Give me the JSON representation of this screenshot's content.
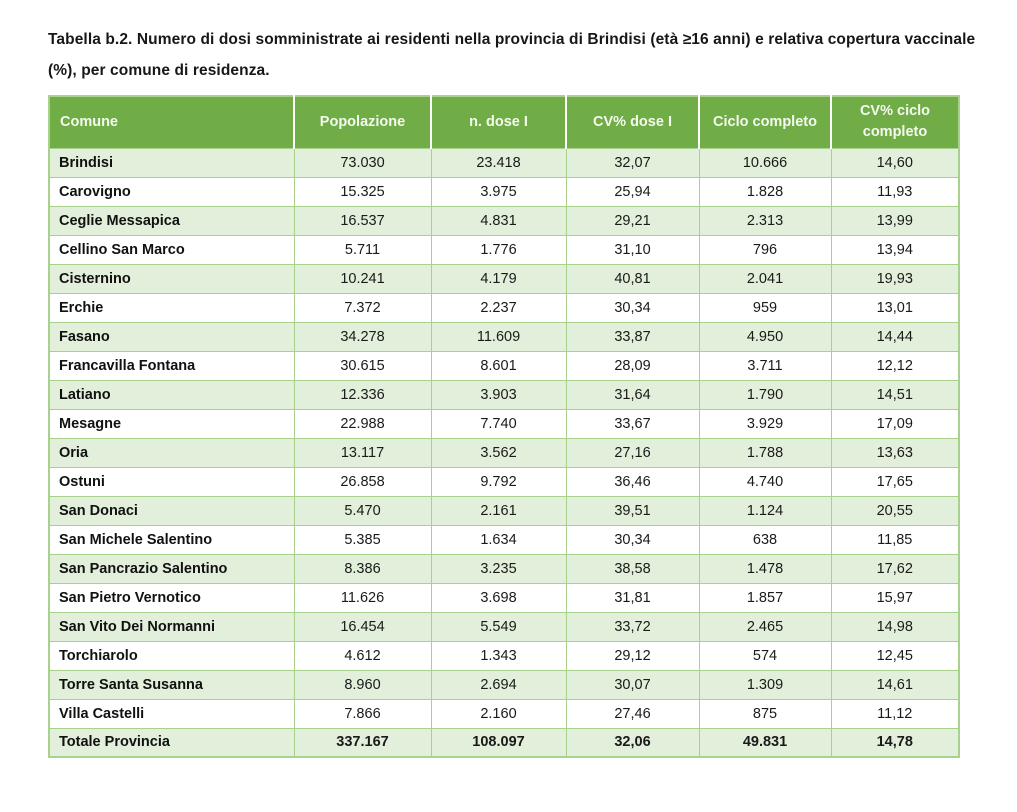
{
  "title": "Tabella b.2. Numero di dosi somministrate ai residenti nella provincia di Brindisi (età ≥16 anni) e relativa copertura vaccinale (%), per comune di residenza.",
  "colors": {
    "header_bg": "#70AD47",
    "header_text": "#F5FAF0",
    "band_row_bg": "#E2EFDA",
    "plain_row_bg": "#FFFFFF",
    "border": "#A9D18E"
  },
  "table": {
    "columns": [
      "Comune",
      "Popolazione",
      "n. dose I",
      "CV% dose I",
      "Ciclo completo",
      "CV% ciclo completo"
    ],
    "rows": [
      [
        "Brindisi",
        "73.030",
        "23.418",
        "32,07",
        "10.666",
        "14,60"
      ],
      [
        "Carovigno",
        "15.325",
        "3.975",
        "25,94",
        "1.828",
        "11,93"
      ],
      [
        "Ceglie Messapica",
        "16.537",
        "4.831",
        "29,21",
        "2.313",
        "13,99"
      ],
      [
        "Cellino San Marco",
        "5.711",
        "1.776",
        "31,10",
        "796",
        "13,94"
      ],
      [
        "Cisternino",
        "10.241",
        "4.179",
        "40,81",
        "2.041",
        "19,93"
      ],
      [
        "Erchie",
        "7.372",
        "2.237",
        "30,34",
        "959",
        "13,01"
      ],
      [
        "Fasano",
        "34.278",
        "11.609",
        "33,87",
        "4.950",
        "14,44"
      ],
      [
        "Francavilla Fontana",
        "30.615",
        "8.601",
        "28,09",
        "3.711",
        "12,12"
      ],
      [
        "Latiano",
        "12.336",
        "3.903",
        "31,64",
        "1.790",
        "14,51"
      ],
      [
        "Mesagne",
        "22.988",
        "7.740",
        "33,67",
        "3.929",
        "17,09"
      ],
      [
        "Oria",
        "13.117",
        "3.562",
        "27,16",
        "1.788",
        "13,63"
      ],
      [
        "Ostuni",
        "26.858",
        "9.792",
        "36,46",
        "4.740",
        "17,65"
      ],
      [
        "San Donaci",
        "5.470",
        "2.161",
        "39,51",
        "1.124",
        "20,55"
      ],
      [
        "San Michele Salentino",
        "5.385",
        "1.634",
        "30,34",
        "638",
        "11,85"
      ],
      [
        "San Pancrazio Salentino",
        "8.386",
        "3.235",
        "38,58",
        "1.478",
        "17,62"
      ],
      [
        "San Pietro Vernotico",
        "11.626",
        "3.698",
        "31,81",
        "1.857",
        "15,97"
      ],
      [
        "San Vito Dei Normanni",
        "16.454",
        "5.549",
        "33,72",
        "2.465",
        "14,98"
      ],
      [
        "Torchiarolo",
        "4.612",
        "1.343",
        "29,12",
        "574",
        "12,45"
      ],
      [
        "Torre Santa Susanna",
        "8.960",
        "2.694",
        "30,07",
        "1.309",
        "14,61"
      ],
      [
        "Villa Castelli",
        "7.866",
        "2.160",
        "27,46",
        "875",
        "11,12"
      ]
    ],
    "total_row": [
      "Totale Provincia",
      "337.167",
      "108.097",
      "32,06",
      "49.831",
      "14,78"
    ]
  }
}
